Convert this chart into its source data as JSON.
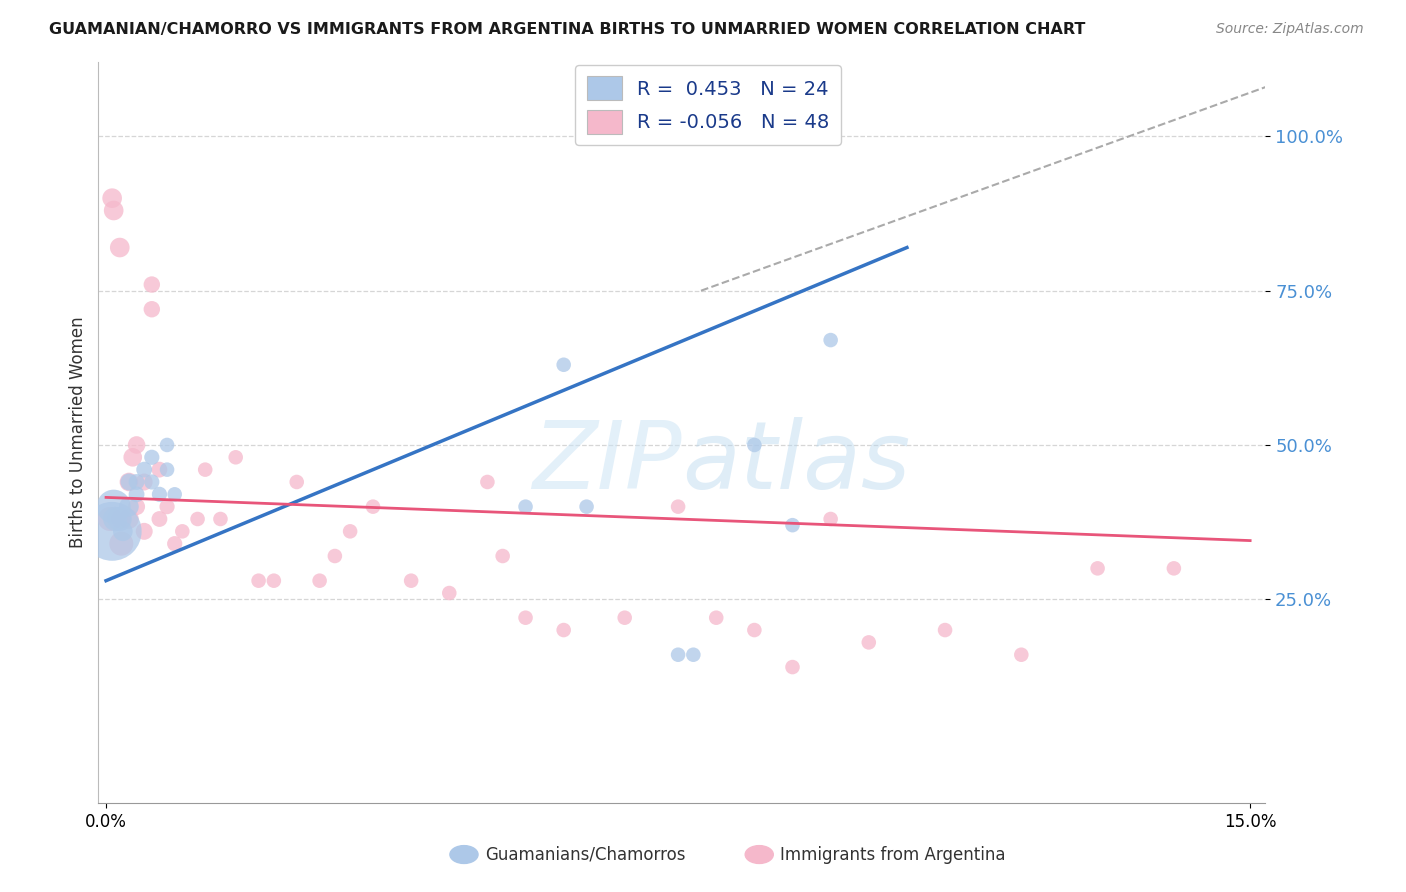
{
  "title": "GUAMANIAN/CHAMORRO VS IMMIGRANTS FROM ARGENTINA BIRTHS TO UNMARRIED WOMEN CORRELATION CHART",
  "source": "Source: ZipAtlas.com",
  "ylabel": "Births to Unmarried Women",
  "xlim": [
    -0.001,
    0.152
  ],
  "ylim": [
    -0.08,
    1.12
  ],
  "yticks": [
    0.25,
    0.5,
    0.75,
    1.0
  ],
  "ytick_labels": [
    "25.0%",
    "50.0%",
    "75.0%",
    "100.0%"
  ],
  "xticks": [
    0.0,
    0.15
  ],
  "xtick_labels": [
    "0.0%",
    "15.0%"
  ],
  "blue_R": "0.453",
  "blue_N": "24",
  "pink_R": "-0.056",
  "pink_N": "48",
  "blue_color": "#adc8e8",
  "pink_color": "#f5b8cb",
  "blue_line_color": "#3574c4",
  "pink_line_color": "#e8557a",
  "legend_label_blue": "Guamanians/Chamorros",
  "legend_label_pink": "Immigrants from Argentina",
  "blue_line_x": [
    0.0,
    0.105
  ],
  "blue_line_y": [
    0.28,
    0.82
  ],
  "pink_line_x": [
    0.0,
    0.15
  ],
  "pink_line_y": [
    0.415,
    0.345
  ],
  "dash_line_x": [
    0.078,
    0.152
  ],
  "dash_line_y": [
    0.75,
    1.08
  ],
  "grid_color": "#cccccc",
  "grid_style": "--",
  "blue_scatter_x": [
    0.0008,
    0.001,
    0.0012,
    0.0018,
    0.0022,
    0.003,
    0.003,
    0.004,
    0.004,
    0.005,
    0.006,
    0.006,
    0.007,
    0.008,
    0.008,
    0.009,
    0.055,
    0.06,
    0.063,
    0.075,
    0.077,
    0.085,
    0.09,
    0.095
  ],
  "blue_scatter_y": [
    0.36,
    0.4,
    0.38,
    0.38,
    0.36,
    0.4,
    0.44,
    0.42,
    0.44,
    0.46,
    0.44,
    0.48,
    0.42,
    0.46,
    0.5,
    0.42,
    0.4,
    0.63,
    0.4,
    0.16,
    0.16,
    0.5,
    0.37,
    0.67
  ],
  "blue_scatter_sizes": [
    1800,
    600,
    300,
    300,
    200,
    200,
    150,
    130,
    130,
    130,
    120,
    120,
    120,
    110,
    110,
    110,
    110,
    110,
    110,
    110,
    110,
    110,
    110,
    110
  ],
  "pink_scatter_x": [
    0.0005,
    0.0008,
    0.001,
    0.0018,
    0.002,
    0.002,
    0.003,
    0.003,
    0.0035,
    0.004,
    0.004,
    0.005,
    0.005,
    0.006,
    0.006,
    0.007,
    0.007,
    0.008,
    0.009,
    0.01,
    0.012,
    0.013,
    0.015,
    0.017,
    0.02,
    0.022,
    0.025,
    0.028,
    0.03,
    0.032,
    0.035,
    0.04,
    0.045,
    0.05,
    0.052,
    0.055,
    0.06,
    0.068,
    0.075,
    0.08,
    0.085,
    0.09,
    0.095,
    0.1,
    0.11,
    0.12,
    0.13,
    0.14
  ],
  "pink_scatter_y": [
    0.38,
    0.9,
    0.88,
    0.82,
    0.34,
    0.38,
    0.38,
    0.44,
    0.48,
    0.5,
    0.4,
    0.44,
    0.36,
    0.72,
    0.76,
    0.38,
    0.46,
    0.4,
    0.34,
    0.36,
    0.38,
    0.46,
    0.38,
    0.48,
    0.28,
    0.28,
    0.44,
    0.28,
    0.32,
    0.36,
    0.4,
    0.28,
    0.26,
    0.44,
    0.32,
    0.22,
    0.2,
    0.22,
    0.4,
    0.22,
    0.2,
    0.14,
    0.38,
    0.18,
    0.2,
    0.16,
    0.3,
    0.3
  ],
  "pink_scatter_sizes": [
    300,
    200,
    200,
    200,
    300,
    200,
    200,
    180,
    180,
    160,
    150,
    150,
    150,
    140,
    140,
    130,
    130,
    120,
    120,
    110,
    110,
    110,
    110,
    110,
    110,
    110,
    110,
    110,
    110,
    110,
    110,
    110,
    110,
    110,
    110,
    110,
    110,
    110,
    110,
    110,
    110,
    110,
    110,
    110,
    110,
    110,
    110,
    110
  ]
}
